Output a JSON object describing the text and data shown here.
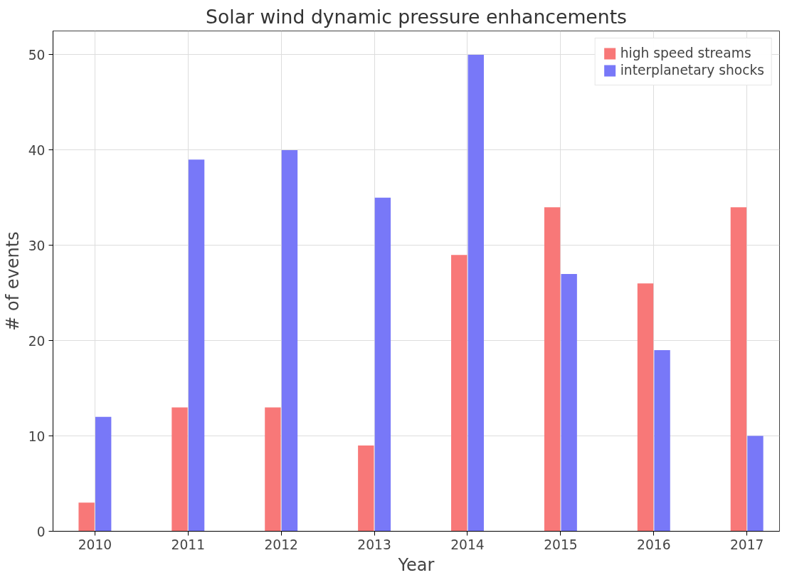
{
  "chart_data": {
    "type": "bar",
    "title": "Solar wind dynamic pressure enhancements",
    "xlabel": "Year",
    "ylabel": "# of events",
    "categories": [
      "2010",
      "2011",
      "2012",
      "2013",
      "2014",
      "2015",
      "2016",
      "2017"
    ],
    "series": [
      {
        "name": "high speed streams",
        "color": "#f87878",
        "values": [
          3,
          13,
          13,
          9,
          29,
          34,
          26,
          34
        ]
      },
      {
        "name": "interplanetary shocks",
        "color": "#7878f8",
        "values": [
          12,
          39,
          40,
          35,
          50,
          27,
          19,
          10
        ]
      }
    ],
    "ylim": [
      0,
      52.5
    ],
    "yticks": [
      0,
      10,
      20,
      30,
      40,
      50
    ],
    "grid": true,
    "legend": "top right"
  }
}
